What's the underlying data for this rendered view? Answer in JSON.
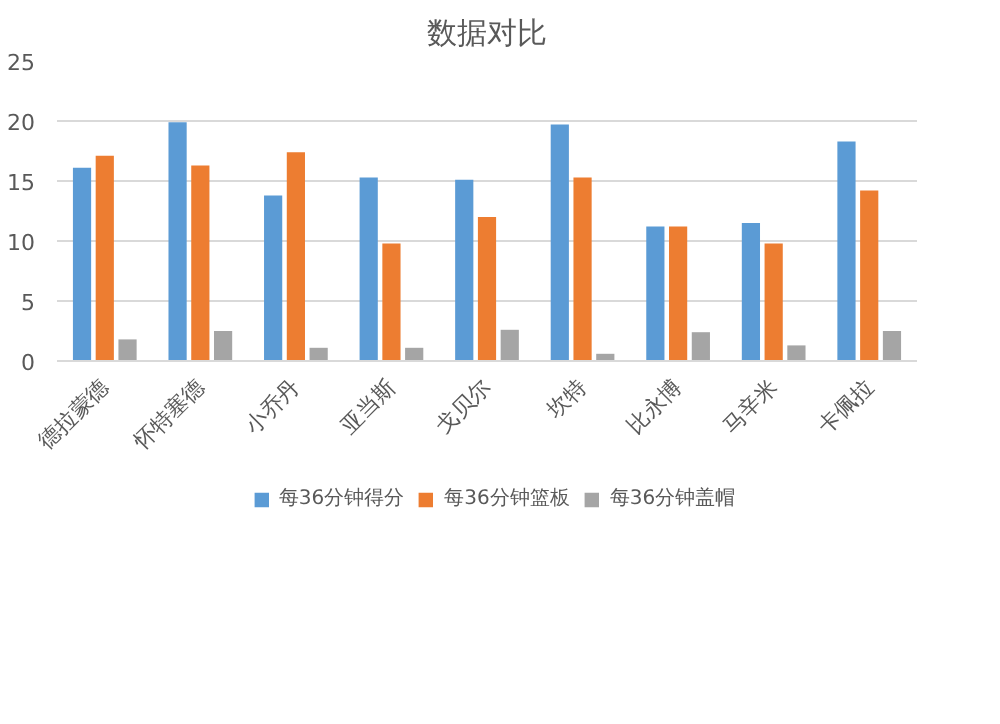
{
  "chart_data": {
    "type": "bar",
    "title": "数据对比",
    "categories": [
      "德拉蒙德",
      "怀特塞德",
      "小乔丹",
      "亚当斯",
      "戈贝尔",
      "坎特",
      "比永博",
      "马辛米",
      "卡佩拉"
    ],
    "series": [
      {
        "name": "每36分钟得分",
        "color": "#5b9bd5",
        "values": [
          16.1,
          19.9,
          13.8,
          15.3,
          15.1,
          19.7,
          11.2,
          11.5,
          18.3
        ]
      },
      {
        "name": "每36分钟篮板",
        "color": "#ed7d31",
        "values": [
          17.1,
          16.3,
          17.4,
          9.8,
          12.0,
          15.3,
          11.2,
          9.8,
          14.2
        ]
      },
      {
        "name": "每36分钟盖帽",
        "color": "#a5a5a5",
        "values": [
          1.8,
          2.5,
          1.1,
          1.1,
          2.6,
          0.6,
          2.4,
          1.3,
          2.5
        ]
      }
    ],
    "ylim": [
      0,
      25
    ],
    "yticks": [
      0,
      5,
      10,
      15,
      20,
      25
    ],
    "grid": "y",
    "legend": "bottom"
  }
}
